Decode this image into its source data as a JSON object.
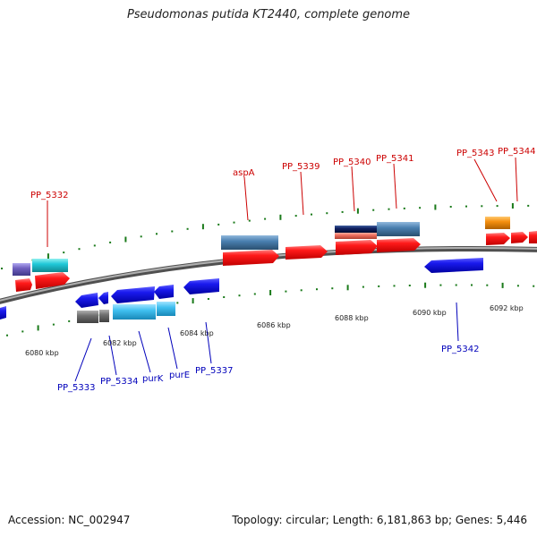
{
  "title": "Pseudomonas putida KT2440, complete genome",
  "accession": "Accession: NC_002947",
  "summary": "Topology: circular; Length: 6,181,863 bp; Genes: 5,446",
  "scale_labels": [
    "6080 kbp",
    "6082 kbp",
    "6084 kbp",
    "6086 kbp",
    "6088 kbp",
    "6090 kbp",
    "6092 kbp"
  ],
  "top_gene_labels": [
    "PP_5332",
    "aspA",
    "PP_5339",
    "PP_5340",
    "PP_5341",
    "PP_5343",
    "PP_5344"
  ],
  "bottom_gene_labels": [
    "PP_5333",
    "PP_5334",
    "purK",
    "purE",
    "PP_5337",
    "PP_5342"
  ],
  "colors": {
    "backbone": "#808080",
    "tick": "#1a7a1a",
    "label_top": "#cc0000",
    "label_bottom": "#0000bb",
    "cds_forward": "#ff1a1a",
    "cds_reverse": "#1a1aee",
    "cyan": "#20c8d8",
    "steel_blue": "#4a80b0",
    "light_blue": "#40c0f0",
    "purple": "#7060c0",
    "orange": "#f59010",
    "gray": "#707070",
    "navy": "#102060",
    "salmon": "#f07060"
  }
}
